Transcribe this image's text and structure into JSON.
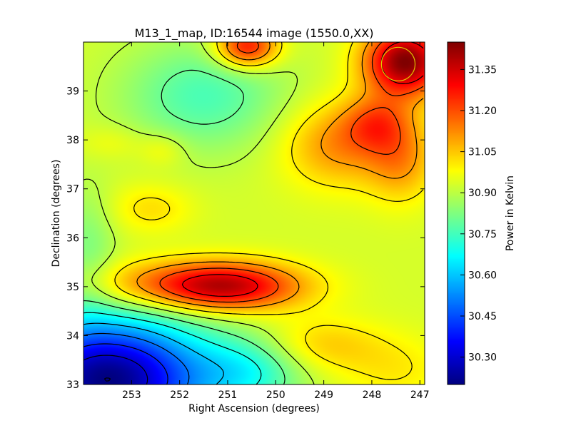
{
  "chart_data": {
    "type": "heatmap",
    "title": "M13_1_map, ID:16544 image (1550.0,XX)",
    "xlabel": "Right Ascension (degrees)",
    "ylabel": "Declination (degrees)",
    "colorbar_label": "Power in Kelvin",
    "xlim": [
      254.0,
      246.9
    ],
    "ylim": [
      33.0,
      40.0
    ],
    "x_ticks": [
      {
        "value": 253,
        "label": "253"
      },
      {
        "value": 252,
        "label": "252"
      },
      {
        "value": 251,
        "label": "251"
      },
      {
        "value": 250,
        "label": "250"
      },
      {
        "value": 249,
        "label": "249"
      },
      {
        "value": 248,
        "label": "248"
      },
      {
        "value": 247,
        "label": "247"
      }
    ],
    "y_ticks": [
      {
        "value": 33,
        "label": "33"
      },
      {
        "value": 34,
        "label": "34"
      },
      {
        "value": 35,
        "label": "35"
      },
      {
        "value": 36,
        "label": "36"
      },
      {
        "value": 37,
        "label": "37"
      },
      {
        "value": 38,
        "label": "38"
      },
      {
        "value": 39,
        "label": "39"
      }
    ],
    "colorbar_range": [
      30.2,
      31.45
    ],
    "colorbar_ticks": [
      {
        "value": 30.3,
        "label": "30.30"
      },
      {
        "value": 30.45,
        "label": "30.45"
      },
      {
        "value": 30.6,
        "label": "30.60"
      },
      {
        "value": 30.75,
        "label": "30.75"
      },
      {
        "value": 30.9,
        "label": "30.90"
      },
      {
        "value": 31.05,
        "label": "31.05"
      },
      {
        "value": 31.2,
        "label": "31.20"
      },
      {
        "value": 31.35,
        "label": "31.35"
      }
    ],
    "colormap": "jet",
    "baseline_value": 30.93,
    "features": [
      {
        "ra": 247.3,
        "dec": 39.6,
        "value": 31.45,
        "sx": 0.6,
        "sy": 0.5
      },
      {
        "ra": 250.6,
        "dec": 39.9,
        "value": 31.3,
        "sx": 0.45,
        "sy": 0.3
      },
      {
        "ra": 251.0,
        "dec": 35.0,
        "value": 31.33,
        "sx": 1.1,
        "sy": 0.35
      },
      {
        "ra": 252.5,
        "dec": 35.05,
        "value": 31.08,
        "sx": 1.3,
        "sy": 0.35
      },
      {
        "ra": 248.7,
        "dec": 37.9,
        "value": 31.12,
        "sx": 0.8,
        "sy": 0.6
      },
      {
        "ra": 247.4,
        "dec": 37.6,
        "value": 31.1,
        "sx": 0.5,
        "sy": 0.6
      },
      {
        "ra": 247.9,
        "dec": 38.35,
        "value": 31.12,
        "sx": 0.5,
        "sy": 0.4
      },
      {
        "ra": 252.6,
        "dec": 36.6,
        "value": 31.02,
        "sx": 0.6,
        "sy": 0.35
      },
      {
        "ra": 252.35,
        "dec": 37.8,
        "value": 31.0,
        "sx": 0.35,
        "sy": 0.25
      },
      {
        "ra": 253.4,
        "dec": 37.95,
        "value": 30.98,
        "sx": 0.5,
        "sy": 0.25
      },
      {
        "ra": 251.5,
        "dec": 38.9,
        "value": 30.76,
        "sx": 1.2,
        "sy": 0.8
      },
      {
        "ra": 249.1,
        "dec": 33.8,
        "value": 31.05,
        "sx": 0.9,
        "sy": 0.4
      },
      {
        "ra": 247.5,
        "dec": 33.3,
        "value": 31.0,
        "sx": 0.8,
        "sy": 0.5
      },
      {
        "ra": 253.5,
        "dec": 33.1,
        "value": 30.2,
        "sx": 1.5,
        "sy": 0.9
      },
      {
        "ra": 250.5,
        "dec": 33.3,
        "value": 30.75,
        "sx": 0.8,
        "sy": 0.5
      },
      {
        "ra": 253.9,
        "dec": 35.8,
        "value": 30.83,
        "sx": 0.4,
        "sy": 0.9
      }
    ],
    "contour_levels": [
      30.2,
      30.3,
      30.4,
      30.5,
      30.6,
      30.7,
      30.8,
      30.9,
      31.0,
      31.1,
      31.2,
      31.3
    ],
    "marker": {
      "ra": 247.45,
      "dec": 39.55,
      "radius_deg": 0.35,
      "color": "#e0c800"
    }
  }
}
